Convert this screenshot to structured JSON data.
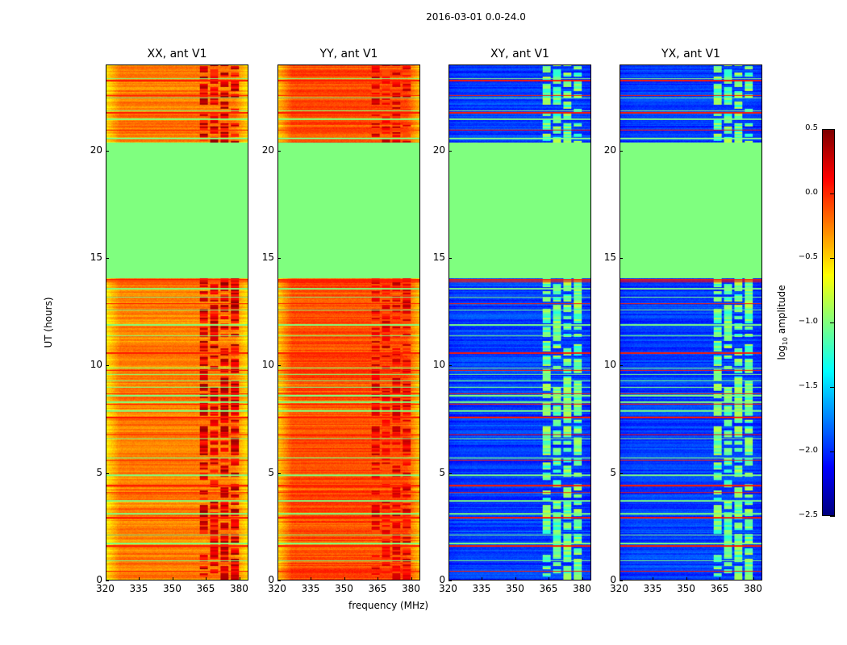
{
  "chart_data": {
    "type": "heatmap",
    "title": "2016-03-01 0.0-24.0",
    "xlabel": "frequency (MHz)",
    "ylabel": "UT (hours)",
    "xlim": [
      320,
      384
    ],
    "ylim": [
      0,
      24
    ],
    "xticks": [
      "320",
      "335",
      "350",
      "365",
      "380"
    ],
    "xtick_values": [
      320,
      335,
      350,
      365,
      380
    ],
    "yticks": [
      "0",
      "5",
      "10",
      "15",
      "20"
    ],
    "ytick_values": [
      0,
      5,
      10,
      15,
      20
    ],
    "colorbar": {
      "label_prefix": "log",
      "label_sub": "10",
      "label_suffix": " amplitude",
      "range": [
        -2.5,
        0.5
      ],
      "ticks": [
        "0.5",
        "0.0",
        "−0.5",
        "−1.0",
        "−1.5",
        "−2.0",
        "−2.5"
      ],
      "tick_values": [
        0.5,
        0.0,
        -0.5,
        -1.0,
        -1.5,
        -2.0,
        -2.5
      ],
      "colormap": "jet"
    },
    "flag_value": -1.0,
    "flagged_hours": [
      [
        14.1,
        20.4
      ]
    ],
    "green_line_hours": [
      0.9,
      1.7,
      2.1,
      3.1,
      3.7,
      4.9,
      5.7,
      6.6,
      7.9,
      8.3,
      8.6,
      9.0,
      9.3,
      9.6,
      9.9,
      11.4,
      11.9,
      12.6,
      13.2,
      13.6,
      20.6,
      21.5,
      21.9,
      22.5,
      23.4
    ],
    "red_line_hours": [
      0.4,
      1.6,
      2.9,
      4.1,
      4.4,
      5.6,
      6.8,
      7.6,
      8.2,
      8.7,
      9.8,
      10.6,
      11.4,
      12.9,
      13.9,
      14.0,
      21.0,
      21.8,
      22.6,
      23.3
    ],
    "rfi_band_mhz": [
      362,
      381
    ],
    "panels": [
      {
        "title": "XX, ant V1",
        "base": -0.25,
        "edge": -0.55,
        "rfi": 0.2,
        "show_ylabels": true
      },
      {
        "title": "YY, ant V1",
        "base": -0.1,
        "edge": -0.45,
        "rfi": 0.1,
        "show_ylabels": true
      },
      {
        "title": "XY, ant V1",
        "base": -1.95,
        "edge": -2.0,
        "rfi": -1.05,
        "show_ylabels": true
      },
      {
        "title": "YX, ant V1",
        "base": -1.95,
        "edge": -2.0,
        "rfi": -1.05,
        "show_ylabels": true
      }
    ]
  }
}
